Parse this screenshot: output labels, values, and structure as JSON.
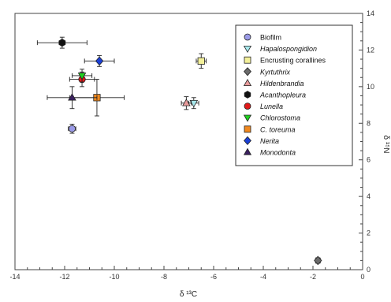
{
  "chart_data": {
    "type": "scatter",
    "xlabel": "δ ¹³C",
    "ylabel": "δ ¹⁵N",
    "xlim": [
      -14,
      0
    ],
    "ylim": [
      0,
      14
    ],
    "x_ticks": [
      "-14",
      "-12",
      "-10",
      "-8",
      "-6",
      "-4",
      "-2",
      "0"
    ],
    "y_ticks": [
      "0",
      "2",
      "4",
      "6",
      "8",
      "10",
      "12",
      "14"
    ],
    "grid": false,
    "legend_placement": "top-right",
    "series": [
      {
        "name": "Biofilm",
        "italic": false,
        "marker": "circle",
        "color": "#9b9be8",
        "x": -11.7,
        "y": 7.7,
        "xerr": 0.15,
        "yerr": 0.25
      },
      {
        "name": "Hapalospongidion",
        "italic": true,
        "marker": "triangle-down",
        "color": "#a8e8ec",
        "x": -6.8,
        "y": 9.1,
        "xerr": 0.2,
        "yerr": 0.3
      },
      {
        "name": "Encrusting corallines",
        "italic": false,
        "marker": "square",
        "color": "#f3f09a",
        "x": -6.5,
        "y": 11.4,
        "xerr": 0.2,
        "yerr": 0.4
      },
      {
        "name": "Kyrtuthrix",
        "italic": true,
        "marker": "diamond",
        "color": "#6b6b6b",
        "x": -1.8,
        "y": 0.5,
        "xerr": 0.1,
        "yerr": 0.15
      },
      {
        "name": "Hildenbrandia",
        "italic": true,
        "marker": "triangle-up",
        "color": "#e89a9a",
        "x": -7.1,
        "y": 9.1,
        "xerr": 0.2,
        "yerr": 0.35
      },
      {
        "name": "Acanthopleura",
        "italic": true,
        "marker": "hexagon",
        "color": "#111111",
        "x": -12.1,
        "y": 12.4,
        "xerr": 1.0,
        "yerr": 0.3
      },
      {
        "name": "Lunella",
        "italic": true,
        "marker": "circle",
        "color": "#e01a1a",
        "x": -11.3,
        "y": 10.4,
        "xerr": 0.5,
        "yerr": 0.4
      },
      {
        "name": "Chlorostoma",
        "italic": true,
        "marker": "triangle-down",
        "color": "#1fd11f",
        "x": -11.3,
        "y": 10.6,
        "xerr": 0.4,
        "yerr": 0.35
      },
      {
        "name": "C. toreuma",
        "italic": true,
        "marker": "square",
        "color": "#f0891f",
        "x": -10.7,
        "y": 9.4,
        "xerr": 1.1,
        "yerr": 1.0
      },
      {
        "name": "Nerita",
        "italic": true,
        "marker": "diamond",
        "color": "#1a3fd6",
        "x": -10.6,
        "y": 11.4,
        "xerr": 0.6,
        "yerr": 0.3
      },
      {
        "name": "Monodonta",
        "italic": true,
        "marker": "triangle-up",
        "color": "#3b2060",
        "x": -11.7,
        "y": 9.4,
        "xerr": 1.0,
        "yerr": 0.6
      }
    ]
  }
}
